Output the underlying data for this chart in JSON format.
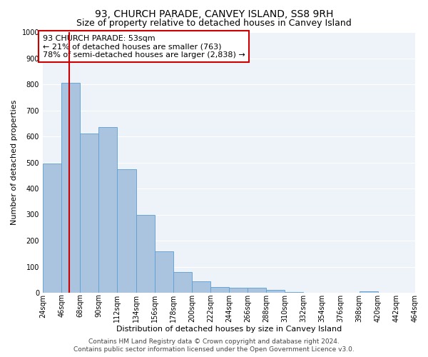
{
  "title1": "93, CHURCH PARADE, CANVEY ISLAND, SS8 9RH",
  "title2": "Size of property relative to detached houses in Canvey Island",
  "xlabel": "Distribution of detached houses by size in Canvey Island",
  "ylabel": "Number of detached properties",
  "bar_values": [
    497,
    805,
    610,
    635,
    475,
    300,
    158,
    80,
    45,
    22,
    20,
    20,
    10,
    3,
    1,
    0,
    0,
    5,
    0,
    1
  ],
  "bar_labels": [
    "24sqm",
    "46sqm",
    "68sqm",
    "90sqm",
    "112sqm",
    "134sqm",
    "156sqm",
    "178sqm",
    "200sqm",
    "222sqm",
    "244sqm",
    "266sqm",
    "288sqm",
    "310sqm",
    "332sqm",
    "354sqm",
    "376sqm",
    "398sqm",
    "420sqm",
    "442sqm",
    "464sqm"
  ],
  "bar_color": "#aac4e0",
  "bar_edge_color": "#5a9fd4",
  "vline_color": "#cc0000",
  "annotation_text": "93 CHURCH PARADE: 53sqm\n← 21% of detached houses are smaller (763)\n78% of semi-detached houses are larger (2,838) →",
  "annotation_box_color": "#ffffff",
  "annotation_box_edge": "#cc0000",
  "ylim": [
    0,
    1000
  ],
  "yticks": [
    0,
    100,
    200,
    300,
    400,
    500,
    600,
    700,
    800,
    900,
    1000
  ],
  "footer1": "Contains HM Land Registry data © Crown copyright and database right 2024.",
  "footer2": "Contains public sector information licensed under the Open Government Licence v3.0.",
  "background_color": "#eef2f9",
  "grid_color": "#ffffff",
  "title1_fontsize": 10,
  "title2_fontsize": 9,
  "axis_label_fontsize": 8,
  "tick_fontsize": 7,
  "annotation_fontsize": 8,
  "footer_fontsize": 6.5,
  "vline_x_bin": 1.41
}
